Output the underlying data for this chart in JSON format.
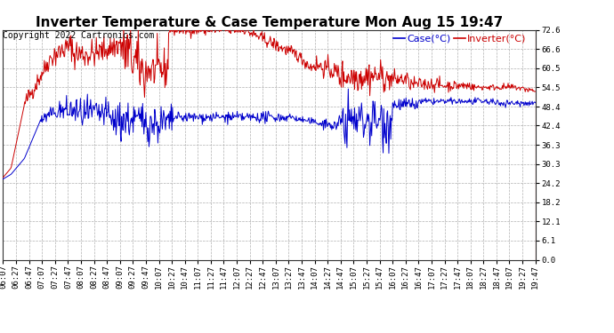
{
  "title": "Inverter Temperature & Case Temperature Mon Aug 15 19:47",
  "copyright": "Copyright 2022 Cartronics.com",
  "legend_case": "Case(°C)",
  "legend_inverter": "Inverter(°C)",
  "yticks": [
    0.0,
    6.1,
    12.1,
    18.2,
    24.2,
    30.3,
    36.3,
    42.4,
    48.4,
    54.5,
    60.5,
    66.6,
    72.6
  ],
  "ylim": [
    0.0,
    72.6
  ],
  "bg_color": "#ffffff",
  "plot_bg_color": "#ffffff",
  "grid_color": "#b0b0b0",
  "case_color": "#0000cc",
  "inverter_color": "#cc0000",
  "title_fontsize": 11,
  "copyright_fontsize": 7,
  "legend_fontsize": 8,
  "tick_fontsize": 6.5,
  "xtick_labels": [
    "06:07",
    "06:27",
    "06:47",
    "07:07",
    "07:27",
    "07:47",
    "08:07",
    "08:27",
    "08:47",
    "09:07",
    "09:27",
    "09:47",
    "10:07",
    "10:27",
    "10:47",
    "11:07",
    "11:27",
    "11:47",
    "12:07",
    "12:27",
    "12:47",
    "13:07",
    "13:27",
    "13:47",
    "14:07",
    "14:27",
    "14:47",
    "15:07",
    "15:27",
    "15:47",
    "16:07",
    "16:27",
    "16:47",
    "17:07",
    "17:27",
    "17:47",
    "18:07",
    "18:27",
    "18:47",
    "19:07",
    "19:27",
    "19:47"
  ]
}
